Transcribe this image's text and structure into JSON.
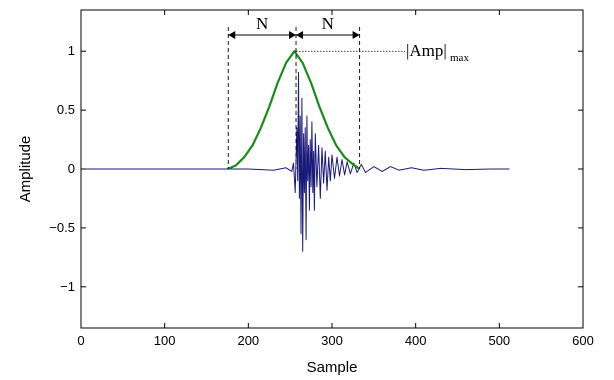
{
  "chart_data": {
    "type": "line",
    "xlabel": "Sample",
    "ylabel": "Amplitude",
    "xlim": [
      0,
      600
    ],
    "ylim": [
      -1.35,
      1.35
    ],
    "xticks": [
      0,
      100,
      200,
      300,
      400,
      500,
      600
    ],
    "xtick_labels": [
      "0",
      "100",
      "200",
      "300",
      "400",
      "500",
      "600"
    ],
    "yticks": [
      -1,
      -0.5,
      0,
      0.5,
      1
    ],
    "ytick_labels": [
      "−1",
      "−0.5",
      "0",
      "0.5",
      "1"
    ],
    "grid": false,
    "series": [
      {
        "role": "signal",
        "color": "#1a1a7a",
        "x": [
          0,
          175,
          200,
          230,
          245,
          252,
          254,
          256,
          258,
          259,
          260,
          261,
          262,
          263,
          264,
          265,
          266,
          267,
          268,
          269,
          270,
          271,
          272,
          273,
          274,
          275,
          276,
          277,
          278,
          279,
          280,
          282,
          284,
          286,
          288,
          290,
          292,
          294,
          296,
          298,
          300,
          303,
          306,
          309,
          312,
          315,
          318,
          322,
          326,
          330,
          335,
          340,
          350,
          360,
          370,
          380,
          395,
          410,
          430,
          460,
          490,
          512
        ],
        "y": [
          0,
          0,
          0,
          -0.01,
          0.01,
          -0.02,
          0.05,
          -0.2,
          0.35,
          -0.1,
          0.82,
          -0.25,
          0.45,
          -0.55,
          0.6,
          -0.7,
          0.3,
          -0.2,
          0.35,
          -0.6,
          0.45,
          -0.1,
          0.2,
          -0.35,
          0.25,
          -0.15,
          0.4,
          -0.2,
          0.15,
          -0.35,
          0.3,
          -0.15,
          0.2,
          -0.25,
          0.18,
          -0.12,
          0.15,
          -0.18,
          0.1,
          -0.1,
          0.12,
          -0.08,
          0.1,
          -0.06,
          0.08,
          -0.05,
          0.06,
          -0.04,
          0.05,
          -0.03,
          0.04,
          -0.03,
          0.02,
          -0.02,
          0.02,
          -0.01,
          0.01,
          -0.01,
          0.005,
          -0.005,
          0.0,
          0.0
        ]
      },
      {
        "role": "envelope",
        "color": "#1a8a1a",
        "x": [
          175,
          185,
          195,
          205,
          215,
          225,
          235,
          245,
          255,
          265,
          275,
          285,
          295,
          305,
          315,
          325,
          333
        ],
        "y": [
          0.0,
          0.03,
          0.1,
          0.2,
          0.35,
          0.53,
          0.73,
          0.9,
          1.0,
          0.9,
          0.73,
          0.53,
          0.35,
          0.2,
          0.1,
          0.04,
          0.0
        ]
      }
    ],
    "annotations": {
      "n_left": {
        "label": "N",
        "x_from": 176,
        "x_to": 257
      },
      "n_right": {
        "label": "N",
        "x_from": 257,
        "x_to": 333
      },
      "amp_max": {
        "label": "|Amp|",
        "subscript": "max",
        "x": 257,
        "y": 1.0
      }
    }
  }
}
